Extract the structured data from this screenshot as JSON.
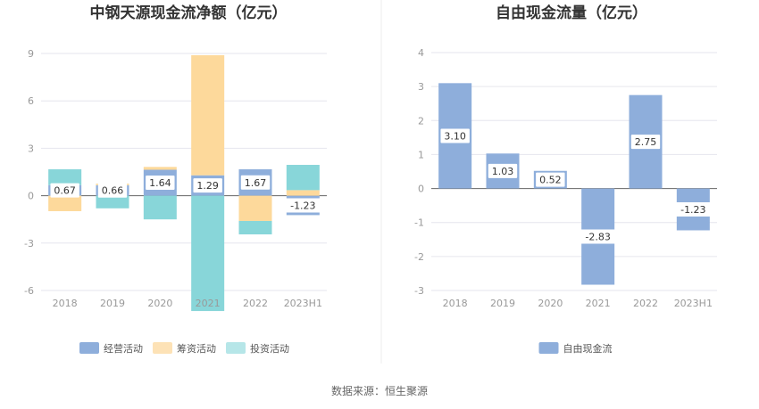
{
  "chart_data": [
    {
      "type": "bar",
      "stacked": true,
      "title": "中钢天源现金流净额（亿元）",
      "categories": [
        "2018",
        "2019",
        "2020",
        "2021",
        "2022",
        "2023H1"
      ],
      "ylim": [
        -6,
        9
      ],
      "yticks": [
        "9",
        "6",
        "3",
        "0",
        "-3",
        "-6"
      ],
      "ytick_values": [
        9,
        6,
        3,
        0,
        -3,
        -6
      ],
      "series": [
        {
          "name": "经营活动",
          "color": "#8eaedb",
          "values": [
            0.67,
            0.66,
            1.64,
            1.29,
            1.67,
            -1.23
          ],
          "labels": [
            "0.67",
            "0.66",
            "1.64",
            "1.29",
            "1.67",
            "-1.23"
          ]
        },
        {
          "name": "筹资活动",
          "color": "#fdd99b",
          "values": [
            -0.98,
            0.1,
            0.18,
            7.6,
            -1.6,
            0.35
          ]
        },
        {
          "name": "投资活动",
          "color": "#88d6d9",
          "values": [
            1.0,
            -0.8,
            -1.5,
            -7.3,
            -0.85,
            1.6
          ]
        }
      ],
      "legend": [
        "经营活动",
        "筹资活动",
        "投资活动"
      ],
      "legend_colors": [
        "#8eaedb",
        "#fde2b6",
        "#b6e6e8"
      ]
    },
    {
      "type": "bar",
      "title": "自由现金流量（亿元）",
      "categories": [
        "2018",
        "2019",
        "2020",
        "2021",
        "2022",
        "2023H1"
      ],
      "ylim": [
        -3,
        4
      ],
      "yticks": [
        "4",
        "3",
        "2",
        "1",
        "0",
        "-1",
        "-2",
        "-3"
      ],
      "ytick_values": [
        4,
        3,
        2,
        1,
        0,
        -1,
        -2,
        -3
      ],
      "series": [
        {
          "name": "自由现金流",
          "color": "#8eaedb",
          "values": [
            3.1,
            1.03,
            0.52,
            -2.83,
            2.75,
            -1.23
          ],
          "labels": [
            "3.10",
            "1.03",
            "0.52",
            "-2.83",
            "2.75",
            "-1.23"
          ]
        }
      ],
      "legend": [
        "自由现金流"
      ],
      "legend_colors": [
        "#8eaedb"
      ]
    }
  ],
  "footer": {
    "source": "数据来源：恒生聚源"
  },
  "colors": {
    "grid": "#e6e6ee",
    "axis": "#666666",
    "divider": "#eeeeee"
  }
}
